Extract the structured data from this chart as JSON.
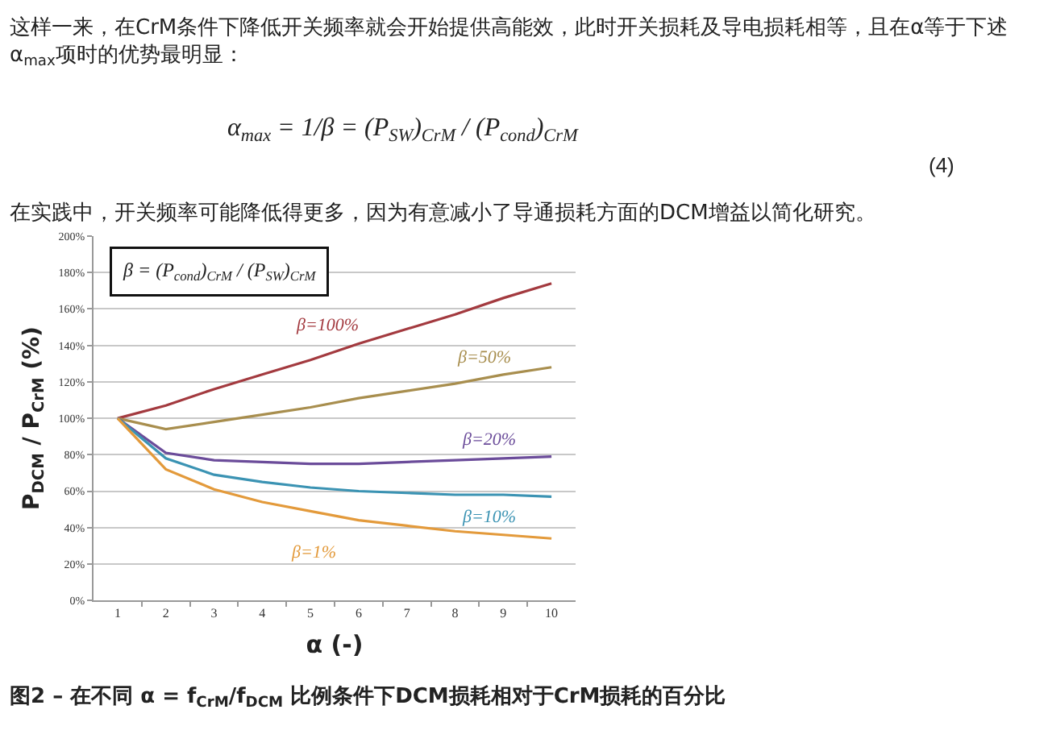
{
  "chart_data": {
    "type": "line",
    "categories": [
      "1",
      "2",
      "3",
      "4",
      "5",
      "6",
      "7",
      "8",
      "9",
      "10"
    ],
    "xlabel": "α (-)",
    "ylabel": "P$_{DCM}$ / P$_{CrM}$ (%)",
    "ylim": [
      0,
      200
    ],
    "yticks": [
      {
        "value": 0,
        "label": "0%"
      },
      {
        "value": 20,
        "label": "20%"
      },
      {
        "value": 40,
        "label": "40%"
      },
      {
        "value": 60,
        "label": "60%"
      },
      {
        "value": 80,
        "label": "80%"
      },
      {
        "value": 100,
        "label": "100%"
      },
      {
        "value": 120,
        "label": "120%"
      },
      {
        "value": 140,
        "label": "140%"
      },
      {
        "value": 160,
        "label": "160%"
      },
      {
        "value": 180,
        "label": "180%"
      },
      {
        "value": 200,
        "label": "200%"
      }
    ],
    "grid": "y",
    "line_style": "solid",
    "series": [
      {
        "name": "β=100%",
        "color": "#a33a3f",
        "values": [
          100,
          107,
          116,
          124,
          132,
          141,
          149,
          157,
          166,
          174
        ]
      },
      {
        "name": "β=50%",
        "color": "#a88e4e",
        "values": [
          100,
          94,
          98,
          102,
          106,
          111,
          115,
          119,
          124,
          128
        ]
      },
      {
        "name": "β=20%",
        "color": "#6b4c9a",
        "values": [
          100,
          81,
          77,
          76,
          75,
          75,
          76,
          77,
          78,
          79
        ]
      },
      {
        "name": "β=10%",
        "color": "#3b93b3",
        "values": [
          100,
          78,
          69,
          65,
          62,
          60,
          59,
          58,
          58,
          57
        ]
      },
      {
        "name": "β=1%",
        "color": "#e39a3b",
        "values": [
          100,
          72,
          61,
          54,
          49,
          44,
          41,
          38,
          36,
          34
        ]
      }
    ],
    "annotations": [
      "这样一来，在CrM条件下降低开关频率就会开始提供高能效，此时开关损耗及导电损耗相等，且在α等于下述\nα$_{max}$项时的优势最明显：",
      "α$_{max}$ = 1/β = (P$_{SW}$)$_{CrM}$ / (P$_{cond}$)$_{CrM}$",
      "(4)",
      "在实践中，开关频率可能降低得更多，因为有意减小了导通损耗方面的DCM增益以简化研究。",
      "β = (P$_{cond}$)$_{CrM}$ / (P$_{SW}$)$_{CrM}$",
      "图2 – 在不同 α = f$_{CrM}$/f$_{DCM}$ 比例条件下DCM损耗相对于CrM损耗的百分比"
    ]
  }
}
